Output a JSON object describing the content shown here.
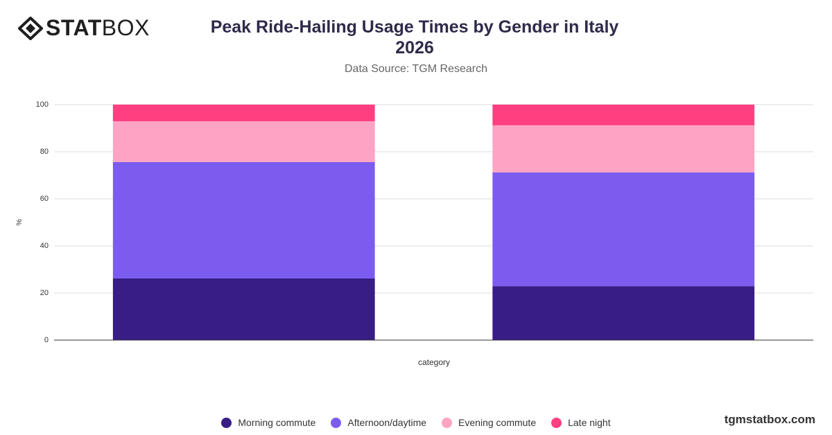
{
  "brand": {
    "logo_bold": "STAT",
    "logo_light": "BOX",
    "website": "tgmstatbox.com"
  },
  "chart_data": {
    "type": "stacked_bar",
    "title": "Peak Ride-Hailing Usage Times by Gender in Italy 2026",
    "subtitle": "Data Source: TGM Research",
    "x_label": "category",
    "y_label": "%",
    "categories": [
      null,
      null
    ],
    "series": [
      {
        "name": "Morning commute",
        "color": "#371d85",
        "values": [
          26.2,
          22.9
        ]
      },
      {
        "name": "Afternoon/daytime",
        "color": "#7b5cef",
        "values": [
          49.4,
          48.3
        ]
      },
      {
        "name": "Evening commute",
        "color": "#ffa3c4",
        "values": [
          17.3,
          20.0
        ]
      },
      {
        "name": "Late night",
        "color": "#ff3f80",
        "values": [
          7.1,
          8.8
        ]
      }
    ],
    "ylim": [
      0,
      100
    ],
    "yticks": [
      0,
      20,
      40,
      60,
      80,
      100
    ],
    "grid": true
  }
}
